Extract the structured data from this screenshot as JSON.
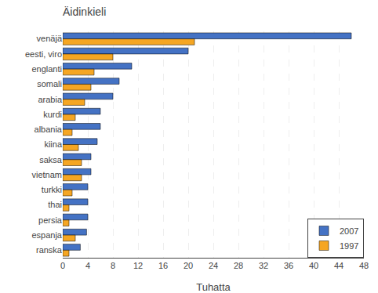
{
  "chart_data": {
    "type": "bar",
    "orientation": "horizontal",
    "title": "Äidinkieli",
    "xlabel": "Tuhatta",
    "categories": [
      "venäjä",
      "eesti, viro",
      "englanti",
      "somali",
      "arabia",
      "kurdi",
      "albania",
      "kiina",
      "saksa",
      "vietnam",
      "turkki",
      "thai",
      "persia",
      "espanja",
      "ranska"
    ],
    "series": [
      {
        "name": "2007",
        "color": "#4472C4",
        "values": [
          46,
          20,
          11,
          9,
          8,
          6,
          6,
          5.5,
          4.5,
          4.5,
          4,
          4,
          4,
          3.8,
          2.8
        ]
      },
      {
        "name": "1997",
        "color": "#F5A623",
        "values": [
          21,
          8,
          5,
          4.5,
          3.5,
          2,
          1.5,
          2.5,
          3,
          3,
          1.5,
          1,
          1,
          2,
          1
        ]
      }
    ],
    "xlim": [
      0,
      48
    ],
    "xticks": [
      0,
      4,
      8,
      12,
      16,
      20,
      24,
      28,
      32,
      36,
      40,
      44,
      48
    ],
    "grid": true,
    "legend": "lower right"
  }
}
